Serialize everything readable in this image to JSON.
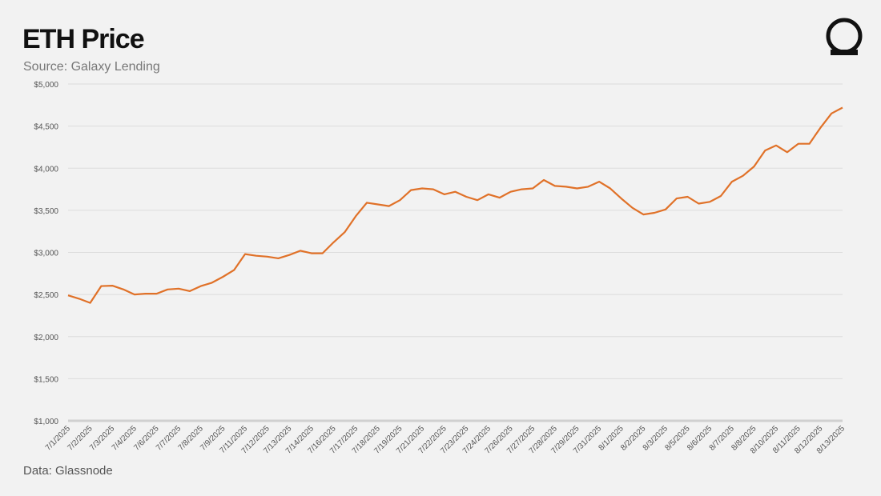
{
  "chart_data": {
    "type": "line",
    "title": "ETH Price",
    "subtitle": "Source: Galaxy Lending",
    "footnote": "Data: Glassnode",
    "color": "#e07128",
    "grid": true,
    "ylim": [
      1000,
      5000
    ],
    "yticks": [
      {
        "value": 1000,
        "label": "$1,000"
      },
      {
        "value": 1500,
        "label": "$1,500"
      },
      {
        "value": 2000,
        "label": "$2,000"
      },
      {
        "value": 2500,
        "label": "$2,500"
      },
      {
        "value": 3000,
        "label": "$3,000"
      },
      {
        "value": 3500,
        "label": "$3,500"
      },
      {
        "value": 4000,
        "label": "$4,000"
      },
      {
        "value": 4500,
        "label": "$4,500"
      },
      {
        "value": 5000,
        "label": "$5,000"
      }
    ],
    "categories": [
      "7/1/2025",
      null,
      "7/2/2025",
      null,
      "7/3/2025",
      null,
      "7/4/2025",
      null,
      "7/6/2025",
      null,
      "7/7/2025",
      null,
      "7/8/2025",
      null,
      "7/9/2025",
      null,
      "7/11/2025",
      null,
      "7/12/2025",
      null,
      "7/13/2025",
      null,
      "7/14/2025",
      null,
      "7/16/2025",
      null,
      "7/17/2025",
      null,
      "7/18/2025",
      null,
      "7/19/2025",
      null,
      "7/21/2025",
      null,
      "7/22/2025",
      null,
      "7/23/2025",
      null,
      "7/24/2025",
      null,
      "7/26/2025",
      null,
      "7/27/2025",
      null,
      "7/28/2025",
      null,
      "7/29/2025",
      null,
      "7/31/2025",
      null,
      "8/1/2025",
      null,
      "8/2/2025",
      null,
      "8/3/2025",
      null,
      "8/5/2025",
      null,
      "8/6/2025",
      null,
      "8/7/2025",
      null,
      "8/8/2025",
      null,
      "8/10/2025",
      null,
      "8/11/2025",
      null,
      "8/12/2025",
      null,
      "8/13/2025"
    ],
    "values": [
      2490,
      2450,
      2400,
      2600,
      2605,
      2560,
      2500,
      2510,
      2510,
      2560,
      2570,
      2540,
      2600,
      2640,
      2710,
      2790,
      2980,
      2960,
      2950,
      2930,
      2970,
      3020,
      2990,
      2990,
      3120,
      3240,
      3430,
      3590,
      3570,
      3550,
      3620,
      3740,
      3760,
      3750,
      3690,
      3720,
      3660,
      3620,
      3690,
      3650,
      3720,
      3750,
      3760,
      3860,
      3790,
      3780,
      3760,
      3780,
      3840,
      3760,
      3640,
      3530,
      3450,
      3470,
      3510,
      3640,
      3660,
      3580,
      3600,
      3670,
      3840,
      3910,
      4020,
      4210,
      4270,
      4190,
      4290,
      4290,
      4480,
      4650,
      4720
    ]
  }
}
